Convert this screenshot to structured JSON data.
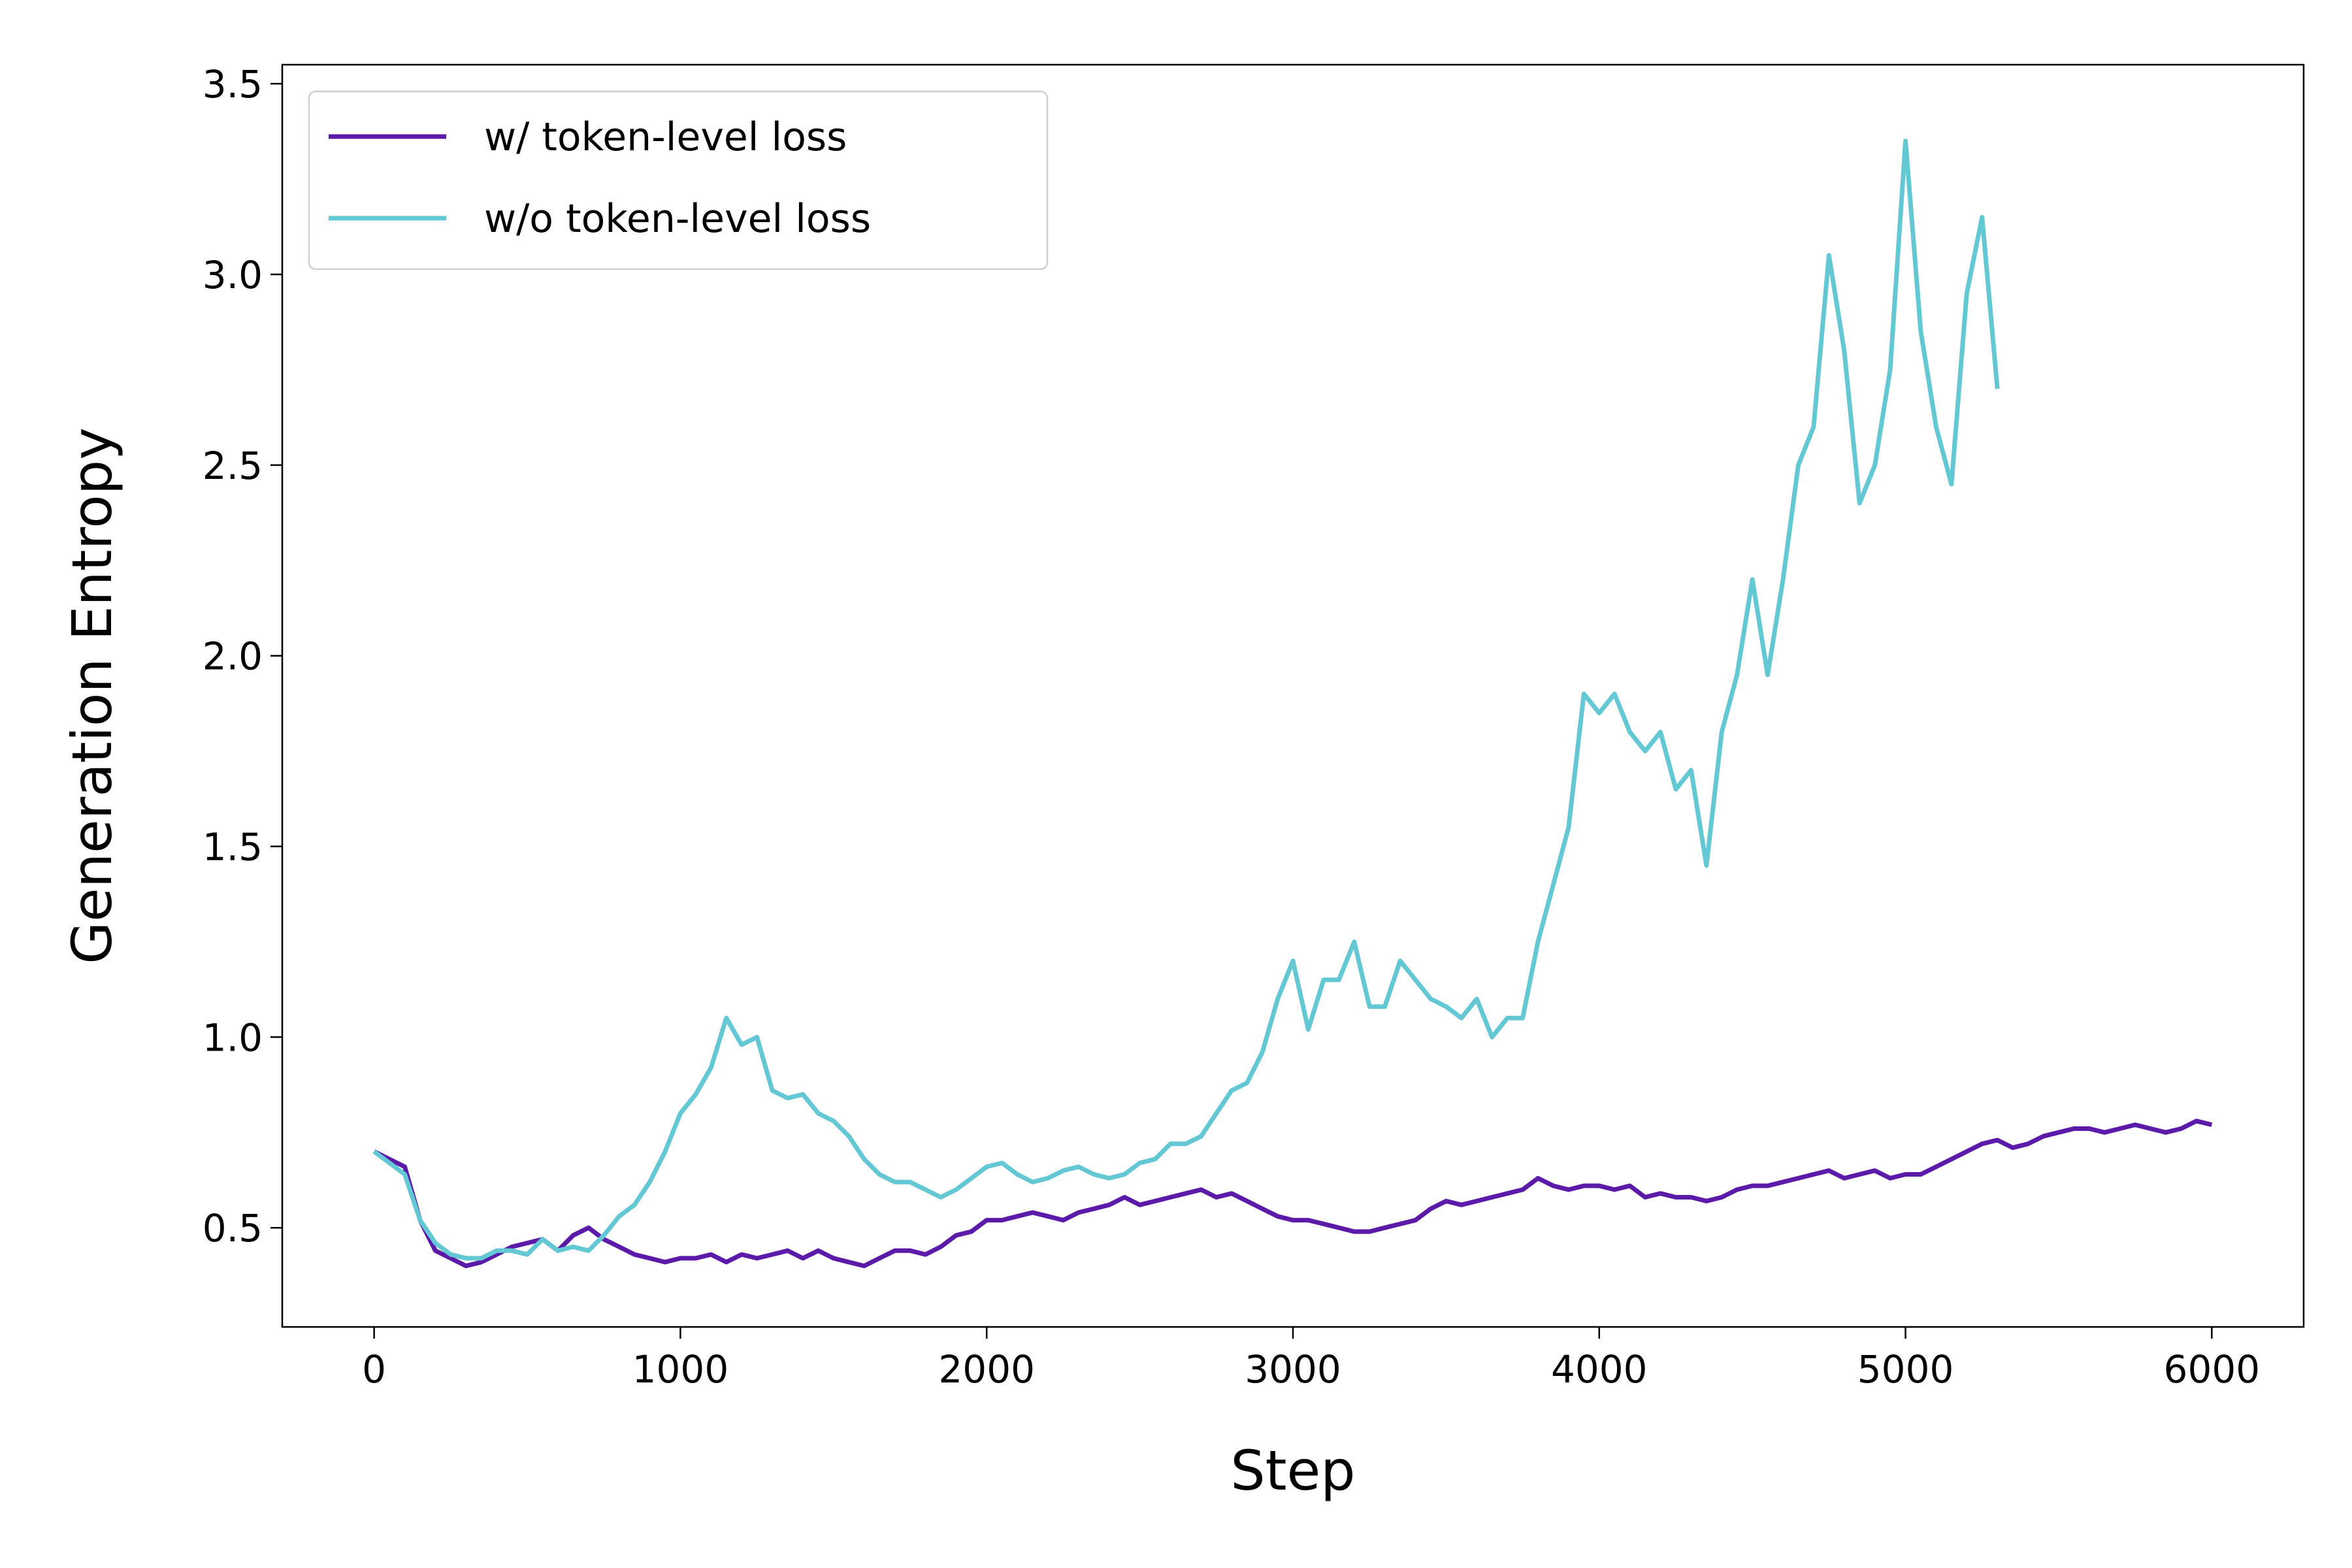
{
  "chart_data": {
    "type": "line",
    "xlabel": "Step",
    "ylabel": "Generation Entropy",
    "x": [
      0,
      50,
      100,
      150,
      200,
      250,
      300,
      350,
      400,
      450,
      500,
      550,
      600,
      650,
      700,
      750,
      800,
      850,
      900,
      950,
      1000,
      1050,
      1100,
      1150,
      1200,
      1250,
      1300,
      1350,
      1400,
      1450,
      1500,
      1550,
      1600,
      1650,
      1700,
      1750,
      1800,
      1850,
      1900,
      1950,
      2000,
      2050,
      2100,
      2150,
      2200,
      2250,
      2300,
      2350,
      2400,
      2450,
      2500,
      2550,
      2600,
      2650,
      2700,
      2750,
      2800,
      2850,
      2900,
      2950,
      3000,
      3050,
      3100,
      3150,
      3200,
      3250,
      3300,
      3350,
      3400,
      3450,
      3500,
      3550,
      3600,
      3650,
      3700,
      3750,
      3800,
      3850,
      3900,
      3950,
      4000,
      4050,
      4100,
      4150,
      4200,
      4250,
      4300,
      4350,
      4400,
      4450,
      4500,
      4550,
      4600,
      4650,
      4700,
      4750,
      4800,
      4850,
      4900,
      4950,
      5000,
      5050,
      5100,
      5150,
      5200,
      5250,
      5300,
      5350,
      5400,
      5450,
      5500,
      5550,
      5600,
      5650,
      5700,
      5750,
      5800,
      5850,
      5900,
      5950,
      6000
    ],
    "series": [
      {
        "name": "w/ token-level loss",
        "color": "#5b1aa8",
        "values": [
          0.7,
          0.68,
          0.66,
          0.52,
          0.44,
          0.42,
          0.4,
          0.41,
          0.43,
          0.45,
          0.46,
          0.47,
          0.44,
          0.48,
          0.5,
          0.47,
          0.45,
          0.43,
          0.42,
          0.41,
          0.42,
          0.42,
          0.43,
          0.41,
          0.43,
          0.42,
          0.43,
          0.44,
          0.42,
          0.44,
          0.42,
          0.41,
          0.4,
          0.42,
          0.44,
          0.44,
          0.43,
          0.45,
          0.48,
          0.49,
          0.52,
          0.52,
          0.53,
          0.54,
          0.53,
          0.52,
          0.54,
          0.55,
          0.56,
          0.58,
          0.56,
          0.57,
          0.58,
          0.59,
          0.6,
          0.58,
          0.59,
          0.57,
          0.55,
          0.53,
          0.52,
          0.52,
          0.51,
          0.5,
          0.49,
          0.49,
          0.5,
          0.51,
          0.52,
          0.55,
          0.57,
          0.56,
          0.57,
          0.58,
          0.59,
          0.6,
          0.63,
          0.61,
          0.6,
          0.61,
          0.61,
          0.6,
          0.61,
          0.58,
          0.59,
          0.58,
          0.58,
          0.57,
          0.58,
          0.6,
          0.61,
          0.61,
          0.62,
          0.63,
          0.64,
          0.65,
          0.63,
          0.64,
          0.65,
          0.63,
          0.64,
          0.64,
          0.66,
          0.68,
          0.7,
          0.72,
          0.73,
          0.71,
          0.72,
          0.74,
          0.75,
          0.76,
          0.76,
          0.75,
          0.76,
          0.77,
          0.76,
          0.75,
          0.76,
          0.78,
          0.77
        ]
      },
      {
        "name": "w/o token-level loss",
        "color": "#64c8d4",
        "values": [
          0.7,
          0.67,
          0.64,
          0.52,
          0.46,
          0.43,
          0.42,
          0.42,
          0.44,
          0.44,
          0.43,
          0.47,
          0.44,
          0.45,
          0.44,
          0.48,
          0.53,
          0.56,
          0.62,
          0.7,
          0.8,
          0.85,
          0.92,
          1.05,
          0.98,
          1.0,
          0.86,
          0.84,
          0.85,
          0.8,
          0.78,
          0.74,
          0.68,
          0.64,
          0.62,
          0.62,
          0.6,
          0.58,
          0.6,
          0.63,
          0.66,
          0.67,
          0.64,
          0.62,
          0.63,
          0.65,
          0.66,
          0.64,
          0.63,
          0.64,
          0.67,
          0.68,
          0.72,
          0.72,
          0.74,
          0.8,
          0.86,
          0.88,
          0.96,
          1.1,
          1.2,
          1.02,
          1.15,
          1.15,
          1.25,
          1.08,
          1.08,
          1.2,
          1.15,
          1.1,
          1.08,
          1.05,
          1.1,
          1.0,
          1.05,
          1.05,
          1.25,
          1.4,
          1.55,
          1.9,
          1.85,
          1.9,
          1.8,
          1.75,
          1.8,
          1.65,
          1.7,
          1.45,
          1.8,
          1.95,
          2.2,
          1.95,
          2.2,
          2.5,
          2.6,
          3.05,
          2.8,
          2.4,
          2.5,
          2.75,
          3.35,
          2.85,
          2.6,
          2.45,
          2.95,
          3.15,
          2.7,
          null,
          null,
          null,
          null,
          null,
          null,
          null,
          null,
          null,
          null,
          null,
          null,
          null,
          null
        ]
      }
    ],
    "xlim": [
      -300,
      6300
    ],
    "ylim": [
      0.24,
      3.55
    ],
    "xticks": [
      0,
      1000,
      2000,
      3000,
      4000,
      5000,
      6000
    ],
    "yticks": [
      0.5,
      {
        "value": 1,
        "label": "1.0"
      },
      1.5,
      {
        "value": 2,
        "label": "2.0"
      },
      2.5,
      {
        "value": 3,
        "label": "3.0"
      },
      3.5
    ],
    "legend": "upper left",
    "grid": false
  }
}
